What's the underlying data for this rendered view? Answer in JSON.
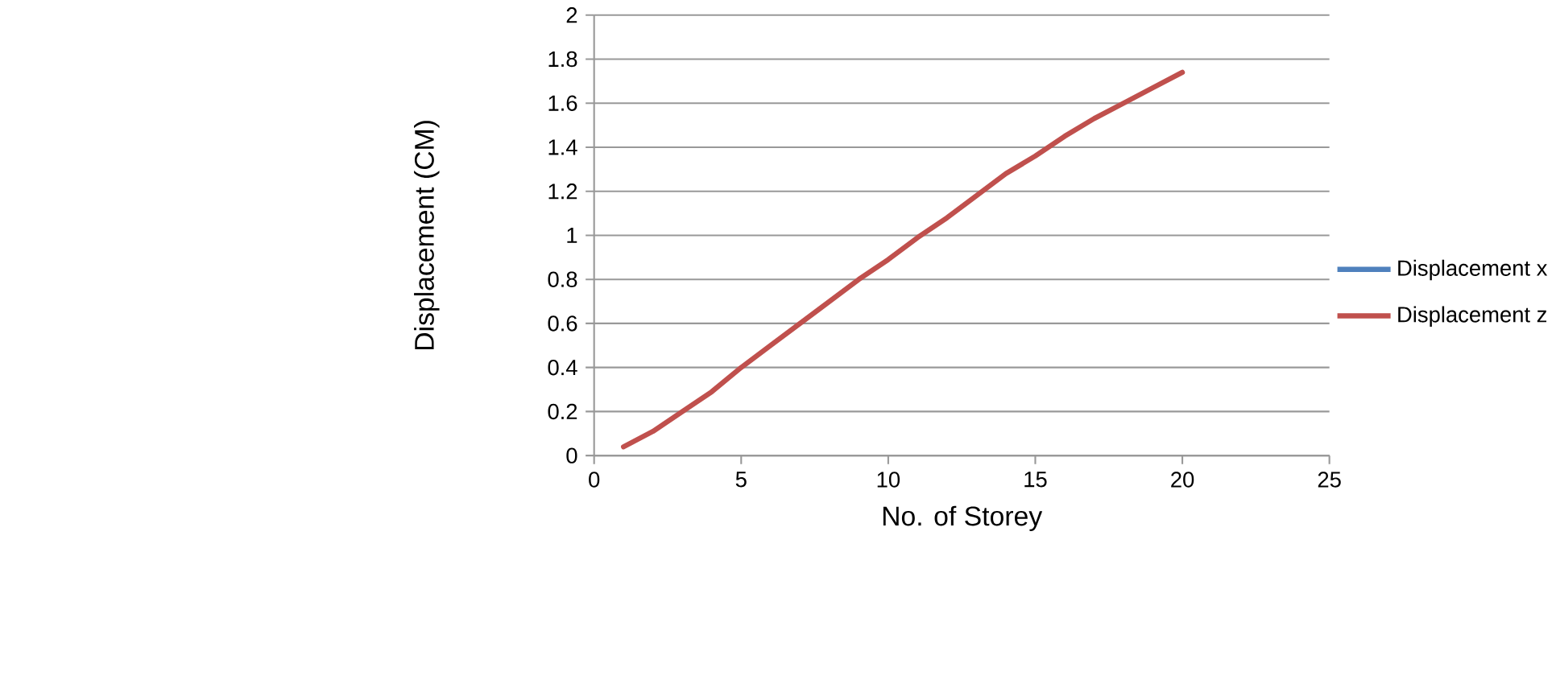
{
  "chart_data": {
    "type": "line",
    "xlabel": "No. of Storey",
    "ylabel": "Displacement (CM)",
    "x": [
      1,
      2,
      3,
      4,
      5,
      6,
      7,
      8,
      9,
      10,
      11,
      12,
      13,
      14,
      15,
      16,
      17,
      18,
      19,
      20
    ],
    "series": [
      {
        "name": "Displacement x",
        "color": "#4f81bd",
        "values": [
          null,
          null,
          null,
          null,
          null,
          null,
          null,
          null,
          null,
          null,
          null,
          null,
          null,
          null,
          null,
          null,
          null,
          null,
          null,
          null
        ]
      },
      {
        "name": "Displacement z",
        "color": "#c0504d",
        "values": [
          0.04,
          0.11,
          0.2,
          0.29,
          0.4,
          0.5,
          0.6,
          0.7,
          0.8,
          0.89,
          0.99,
          1.08,
          1.18,
          1.28,
          1.36,
          1.45,
          1.53,
          1.6,
          1.67,
          1.74
        ]
      }
    ],
    "xlim": [
      0,
      25
    ],
    "xticks": [
      0,
      5,
      10,
      15,
      20,
      25
    ],
    "ylim": [
      0,
      2
    ],
    "yticks": [
      0,
      0.2,
      0.4,
      0.6,
      0.8,
      1,
      1.2,
      1.4,
      1.6,
      1.8,
      2
    ],
    "grid": "y",
    "legend": "right",
    "marker": "none",
    "line_style": "solid"
  }
}
